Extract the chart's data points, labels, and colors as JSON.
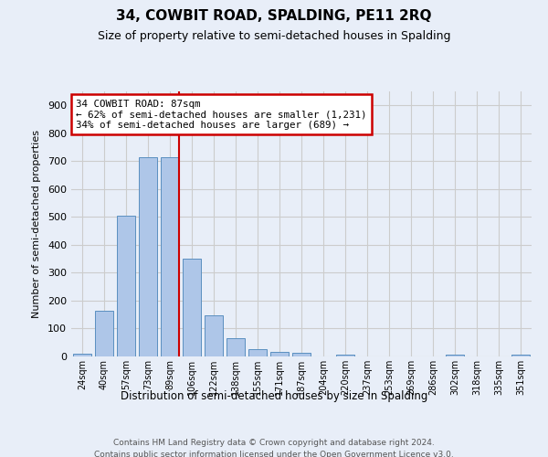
{
  "title": "34, COWBIT ROAD, SPALDING, PE11 2RQ",
  "subtitle": "Size of property relative to semi-detached houses in Spalding",
  "xlabel": "Distribution of semi-detached houses by size in Spalding",
  "ylabel": "Number of semi-detached properties",
  "footer_line1": "Contains HM Land Registry data © Crown copyright and database right 2024.",
  "footer_line2": "Contains public sector information licensed under the Open Government Licence v3.0.",
  "bar_labels": [
    "24sqm",
    "40sqm",
    "57sqm",
    "73sqm",
    "89sqm",
    "106sqm",
    "122sqm",
    "138sqm",
    "155sqm",
    "171sqm",
    "187sqm",
    "204sqm",
    "220sqm",
    "237sqm",
    "253sqm",
    "269sqm",
    "286sqm",
    "302sqm",
    "318sqm",
    "335sqm",
    "351sqm"
  ],
  "bar_values": [
    10,
    163,
    503,
    714,
    714,
    350,
    148,
    67,
    27,
    18,
    14,
    0,
    8,
    0,
    0,
    0,
    0,
    8,
    0,
    0,
    8
  ],
  "bar_color": "#aec6e8",
  "bar_edge_color": "#5a8fc0",
  "red_line_index": 4,
  "annotation_title": "34 COWBIT ROAD: 87sqm",
  "annotation_line1": "← 62% of semi-detached houses are smaller (1,231)",
  "annotation_line2": "34% of semi-detached houses are larger (689) →",
  "annotation_box_color": "#ffffff",
  "annotation_box_edge_color": "#cc0000",
  "ylim": [
    0,
    950
  ],
  "yticks": [
    0,
    100,
    200,
    300,
    400,
    500,
    600,
    700,
    800,
    900
  ],
  "grid_color": "#cccccc",
  "background_color": "#e8eef8",
  "title_fontsize": 11,
  "subtitle_fontsize": 9
}
